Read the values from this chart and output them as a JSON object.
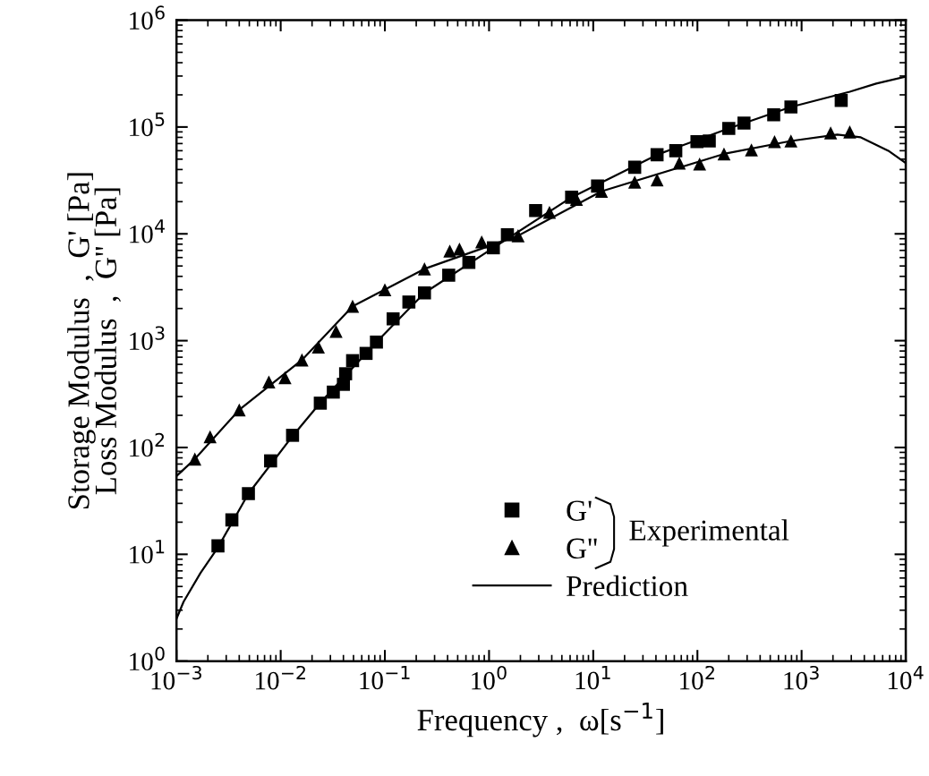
{
  "chart_data": {
    "type": "scatter",
    "xlabel": "Frequency ,  ω[s$^{−1}$]",
    "ylabel": "Storage Modulus  ,  G' [Pa]\nLoss Modulus  ,  G'' [Pa]",
    "log": "xy",
    "grid": false,
    "legend": "bottom right",
    "xlim": [
      0.001,
      10000
    ],
    "ylim": [
      1,
      1000000
    ],
    "xticks": [
      {
        "value": 0.001,
        "label": "10$^{−3}$"
      },
      {
        "value": 0.01,
        "label": "10$^{−2}$"
      },
      {
        "value": 0.1,
        "label": "10$^{−1}$"
      },
      {
        "value": 1,
        "label": "10$^{0}$"
      },
      {
        "value": 10,
        "label": "10$^{1}$"
      },
      {
        "value": 100,
        "label": "10$^{2}$"
      },
      {
        "value": 1000,
        "label": "10$^{3}$"
      },
      {
        "value": 10000,
        "label": "10$^{4}$"
      }
    ],
    "yticks": [
      {
        "value": 1,
        "label": "10$^{0}$"
      },
      {
        "value": 10,
        "label": "10$^{1}$"
      },
      {
        "value": 100,
        "label": "10$^{2}$"
      },
      {
        "value": 1000,
        "label": "10$^{3}$"
      },
      {
        "value": 10000,
        "label": "10$^{4}$"
      },
      {
        "value": 100000,
        "label": "10$^{5}$"
      },
      {
        "value": 1000000,
        "label": "10$^{6}$"
      }
    ],
    "annotations": [
      "Experimental"
    ],
    "series": [
      {
        "name": "G'",
        "marker": "square",
        "color": "#000000",
        "x": [
          0.0025,
          0.0034,
          0.0049,
          0.008,
          0.013,
          0.024,
          0.032,
          0.04,
          0.042,
          0.049,
          0.066,
          0.083,
          0.12,
          0.17,
          0.24,
          0.41,
          0.64,
          1.1,
          1.5,
          2.8,
          6.2,
          11,
          25,
          41,
          62,
          99,
          130,
          200,
          280,
          540,
          790,
          2400
        ],
        "values": [
          12,
          21,
          37,
          75,
          130,
          260,
          330,
          390,
          490,
          650,
          760,
          970,
          1600,
          2300,
          2800,
          4100,
          5400,
          7400,
          9800,
          16500,
          22000,
          28000,
          42000,
          55000,
          60000,
          73000,
          74000,
          97000,
          109000,
          130000,
          154000,
          177000
        ]
      },
      {
        "name": "G''",
        "marker": "triangle",
        "color": "#000000",
        "x": [
          0.0015,
          0.0021,
          0.004,
          0.0077,
          0.011,
          0.016,
          0.023,
          0.034,
          0.049,
          0.1,
          0.24,
          0.42,
          0.52,
          0.85,
          1.9,
          3.8,
          6.9,
          12,
          25,
          41,
          67,
          105,
          180,
          330,
          550,
          790,
          1900,
          2900
        ],
        "values": [
          78,
          126,
          225,
          410,
          450,
          660,
          870,
          1220,
          2100,
          3000,
          4700,
          6900,
          7200,
          8400,
          9600,
          15900,
          21000,
          25000,
          30500,
          32000,
          46000,
          45000,
          56000,
          61000,
          73000,
          74000,
          88000,
          90000
        ]
      },
      {
        "name": "Prediction",
        "type": "line",
        "line_style": "solid",
        "color": "#000000",
        "x": [
          0.001,
          0.00117,
          0.0017,
          0.0025,
          0.0049,
          0.013,
          0.024,
          0.083,
          0.24,
          1.1,
          6.2,
          41,
          200,
          790,
          2900,
          5200,
          10000
        ],
        "values": [
          2.5,
          3.6,
          6.7,
          11.6,
          37,
          128,
          262,
          970,
          2800,
          7400,
          22000,
          55000,
          97000,
          154000,
          214000,
          255000,
          297000
        ]
      },
      {
        "type": "line",
        "line_style": "solid",
        "color": "#000000",
        "x": [
          0.001,
          0.0015,
          0.004,
          0.016,
          0.049,
          0.24,
          1.9,
          12,
          180,
          790,
          2200,
          3700,
          6800,
          10000
        ],
        "values": [
          54,
          78,
          225,
          660,
          2100,
          4700,
          9600,
          25000,
          56000,
          74000,
          85000,
          80000,
          60000,
          46000
        ]
      }
    ]
  }
}
